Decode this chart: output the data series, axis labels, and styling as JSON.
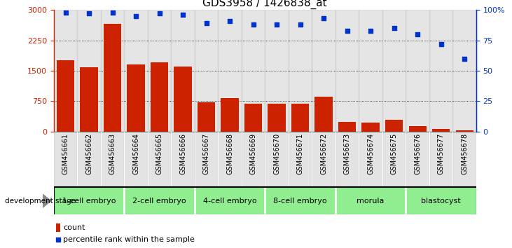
{
  "title": "GDS3958 / 1426838_at",
  "samples": [
    "GSM456661",
    "GSM456662",
    "GSM456663",
    "GSM456664",
    "GSM456665",
    "GSM456666",
    "GSM456667",
    "GSM456668",
    "GSM456669",
    "GSM456670",
    "GSM456671",
    "GSM456672",
    "GSM456673",
    "GSM456674",
    "GSM456675",
    "GSM456676",
    "GSM456677",
    "GSM456678"
  ],
  "counts": [
    1750,
    1580,
    2650,
    1650,
    1700,
    1600,
    720,
    820,
    690,
    680,
    680,
    850,
    230,
    210,
    280,
    130,
    65,
    20
  ],
  "percentiles": [
    98,
    97,
    98,
    95,
    97,
    96,
    89,
    91,
    88,
    88,
    88,
    93,
    83,
    83,
    85,
    80,
    72,
    60
  ],
  "stages": [
    {
      "label": "1-cell embryo",
      "start": 0,
      "end": 3
    },
    {
      "label": "2-cell embryo",
      "start": 3,
      "end": 6
    },
    {
      "label": "4-cell embryo",
      "start": 6,
      "end": 9
    },
    {
      "label": "8-cell embryo",
      "start": 9,
      "end": 12
    },
    {
      "label": "morula",
      "start": 12,
      "end": 15
    },
    {
      "label": "blastocyst",
      "start": 15,
      "end": 18
    }
  ],
  "bar_color": "#cc2200",
  "dot_color": "#0033cc",
  "left_ylim": [
    0,
    3000
  ],
  "left_yticks": [
    0,
    750,
    1500,
    2250,
    3000
  ],
  "right_ylim": [
    0,
    100
  ],
  "right_yticks": [
    0,
    25,
    50,
    75,
    100
  ],
  "grid_values": [
    750,
    1500,
    2250
  ],
  "background_color": "#ffffff",
  "sample_bg_color": "#cccccc",
  "stage_fill_color": "#90ee90",
  "stage_border_color": "#33aa33",
  "title_fontsize": 11,
  "tick_fontsize": 7,
  "legend_count_color": "#cc2200",
  "legend_pct_color": "#0033cc"
}
